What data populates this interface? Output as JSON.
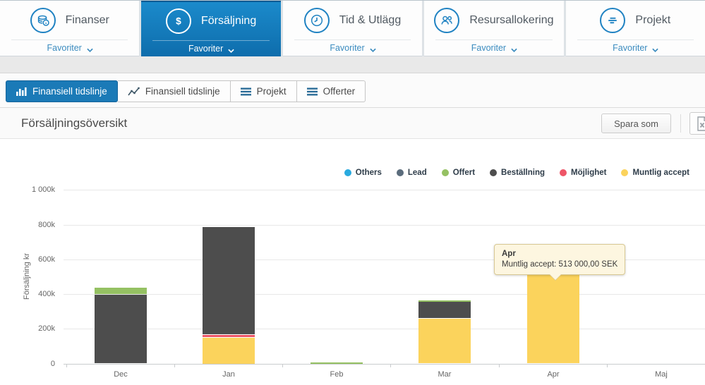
{
  "tabs": {
    "favorites_label": "Favoriter",
    "items": [
      {
        "label": "Finanser",
        "icon": "coins-icon",
        "selected": false
      },
      {
        "label": "Försäljning",
        "icon": "dollar-icon",
        "selected": true
      },
      {
        "label": "Tid & Utlägg",
        "icon": "clock-icon",
        "selected": false
      },
      {
        "label": "Resursallokering",
        "icon": "people-icon",
        "selected": false
      },
      {
        "label": "Projekt",
        "icon": "gantt-icon",
        "selected": false
      }
    ]
  },
  "toolbar": {
    "buttons": [
      {
        "label": "Finansiell tidslinje",
        "icon": "bar-chart-icon",
        "selected": true
      },
      {
        "label": "Finansiell tidslinje",
        "icon": "line-chart-icon",
        "selected": false
      },
      {
        "label": "Projekt",
        "icon": "list-icon",
        "selected": false
      },
      {
        "label": "Offerter",
        "icon": "list-icon",
        "selected": false
      }
    ]
  },
  "panel": {
    "title": "Försäljningsöversikt",
    "save_as_label": "Spara som",
    "export_icon": "excel-export-icon"
  },
  "colors": {
    "selected_tab_blue": "#1b8acb",
    "toolbar_selected_blue": "#1b7ab7",
    "icon_blue": "#1f82c2",
    "favoriter_link_blue": "#3a8bbf"
  },
  "chart_data": {
    "type": "bar",
    "stacked": true,
    "title": "",
    "ylabel": "Försäljning kr",
    "xlabel": "",
    "unit": "values in thousands of SEK (k)",
    "categories": [
      "Dec",
      "Jan",
      "Feb",
      "Mar",
      "Apr",
      "Maj"
    ],
    "y_tick_values": [
      0,
      200,
      400,
      600,
      800,
      1000
    ],
    "y_tick_labels": [
      "0",
      "200k",
      "400k",
      "600k",
      "800k",
      "1 000k"
    ],
    "ylim": [
      0,
      1000
    ],
    "grid": "horizontal",
    "legend_position": "top-right",
    "stack_order_bottom_to_top": [
      "Muntlig accept",
      "Möjlighet",
      "Beställning",
      "Offert",
      "Lead",
      "Others"
    ],
    "series": [
      {
        "name": "Others",
        "color": "#29aadf",
        "values": [
          0,
          0,
          0,
          0,
          0,
          0
        ]
      },
      {
        "name": "Lead",
        "color": "#5b6c7c",
        "values": [
          0,
          0,
          0,
          0,
          0,
          0
        ]
      },
      {
        "name": "Offert",
        "color": "#95c163",
        "values": [
          40,
          0,
          6,
          8,
          0,
          0
        ]
      },
      {
        "name": "Beställning",
        "color": "#4d4d4d",
        "values": [
          395,
          620,
          0,
          97,
          0,
          0
        ]
      },
      {
        "name": "Möjlighet",
        "color": "#ee5567",
        "values": [
          0,
          14,
          0,
          0,
          0,
          0
        ]
      },
      {
        "name": "Muntlig accept",
        "color": "#fbd35c",
        "values": [
          0,
          150,
          0,
          258,
          513,
          0
        ]
      }
    ],
    "tooltip": {
      "title": "Apr",
      "text": "Muntlig accept: 513 000,00 SEK"
    }
  }
}
